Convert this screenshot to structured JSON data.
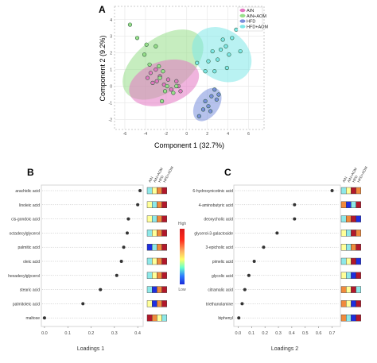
{
  "chart_data": [
    {
      "panel": "A",
      "type": "scatter",
      "xlabel": "Component 1 (32.7%)",
      "ylabel": "Component 2 (9.2%)",
      "xlim": [
        -7,
        7.5
      ],
      "ylim": [
        -2.6,
        4.8
      ],
      "xticks": [
        -6,
        -4,
        -2,
        0,
        2,
        4,
        6
      ],
      "yticks": [
        -2,
        -1,
        0,
        1,
        2,
        3,
        4
      ],
      "legend_position": "top-right",
      "series": [
        {
          "name": "AIN",
          "color": "#e377c2",
          "ellipse": {
            "cx": -2.2,
            "cy": 0.2,
            "rx": 3.5,
            "ry": 1.3,
            "angle": -18
          },
          "points": [
            [
              -3.8,
              0.5
            ],
            [
              -3.5,
              0.8
            ],
            [
              -3.0,
              1.0
            ],
            [
              -2.6,
              0.6
            ],
            [
              -2.2,
              0.1
            ],
            [
              -1.8,
              0.4
            ],
            [
              -1.5,
              -0.2
            ],
            [
              -1.0,
              0.3
            ],
            [
              -0.6,
              -0.3
            ],
            [
              -0.8,
              0.0
            ],
            [
              -2.9,
              0.3
            ],
            [
              -3.3,
              0.2
            ]
          ]
        },
        {
          "name": "AIN+AOM",
          "color": "#98df8a",
          "ellipse": {
            "cx": -2.3,
            "cy": 1.3,
            "rx": 4.5,
            "ry": 1.6,
            "angle": -37
          },
          "points": [
            [
              -5.5,
              3.7
            ],
            [
              -4.8,
              2.9
            ],
            [
              -4.1,
              1.9
            ],
            [
              -3.6,
              1.3
            ],
            [
              -3.0,
              2.4
            ],
            [
              -2.7,
              1.2
            ],
            [
              -2.6,
              0.5
            ],
            [
              -2.3,
              0.9
            ],
            [
              -2.1,
              -0.3
            ],
            [
              -1.9,
              0.0
            ],
            [
              -1.3,
              -0.4
            ],
            [
              -1.0,
              0.0
            ],
            [
              -2.4,
              -0.9
            ],
            [
              -3.9,
              2.5
            ]
          ]
        },
        {
          "name": "HFD",
          "color": "#7a8fdc",
          "ellipse": {
            "cx": 2.0,
            "cy": -1.1,
            "rx": 1.8,
            "ry": 0.7,
            "angle": -56
          },
          "points": [
            [
              1.2,
              -1.8
            ],
            [
              1.6,
              -1.4
            ],
            [
              1.8,
              -0.9
            ],
            [
              2.1,
              -1.2
            ],
            [
              2.4,
              -0.6
            ],
            [
              2.7,
              -0.2
            ],
            [
              3.1,
              -0.5
            ],
            [
              2.3,
              -1.5
            ],
            [
              2.9,
              -0.8
            ]
          ]
        },
        {
          "name": "HFD+AOM",
          "color": "#7fe8e8",
          "ellipse": {
            "cx": 3.4,
            "cy": 1.9,
            "rx": 3.1,
            "ry": 1.5,
            "angle": 36
          },
          "points": [
            [
              1.0,
              1.4
            ],
            [
              1.8,
              0.9
            ],
            [
              2.1,
              1.5
            ],
            [
              2.5,
              2.1
            ],
            [
              3.0,
              1.6
            ],
            [
              3.3,
              2.2
            ],
            [
              3.5,
              2.8
            ],
            [
              3.8,
              2.4
            ],
            [
              4.1,
              1.9
            ],
            [
              4.4,
              2.9
            ],
            [
              4.8,
              3.4
            ],
            [
              5.2,
              2.1
            ],
            [
              2.7,
              0.9
            ],
            [
              3.9,
              1.1
            ]
          ]
        }
      ]
    },
    {
      "panel": "B",
      "type": "scatter",
      "xlabel": "Loadings 1",
      "xlim": [
        -0.01,
        0.42
      ],
      "xticks": [
        0.0,
        0.1,
        0.2,
        0.3,
        0.4
      ],
      "categories": [
        "arachidic acid",
        "linoleic acid",
        "cis-gondoic acid",
        "octadecylglycerol",
        "palmitic acid",
        "oleic acid",
        "hexadecylglycerol",
        "stearic acid",
        "palmitoleic acid",
        "maltose"
      ],
      "values": [
        0.41,
        0.4,
        0.36,
        0.355,
        0.34,
        0.33,
        0.31,
        0.24,
        0.165,
        0.0
      ],
      "heatmap_columns": [
        "AIN",
        "AIN+AOM",
        "HFD",
        "HFD+AOM"
      ],
      "heatmap_levels": [
        [
          0.4,
          0.5,
          0.7,
          1.0
        ],
        [
          0.5,
          0.4,
          0.7,
          1.0
        ],
        [
          0.5,
          0.4,
          0.7,
          1.0
        ],
        [
          0.4,
          0.5,
          0.7,
          1.0
        ],
        [
          0.1,
          0.4,
          0.7,
          1.0
        ],
        [
          0.4,
          0.5,
          0.7,
          1.0
        ],
        [
          0.4,
          0.5,
          0.7,
          1.0
        ],
        [
          0.4,
          0.1,
          0.7,
          1.0
        ],
        [
          0.5,
          0.1,
          0.7,
          1.0
        ],
        [
          1.0,
          0.7,
          0.5,
          0.4
        ]
      ]
    },
    {
      "panel": "C",
      "type": "scatter",
      "xlabel": "Loadings 2",
      "xlim": [
        -0.02,
        0.75
      ],
      "xticks": [
        0.0,
        0.1,
        0.2,
        0.3,
        0.4,
        0.5,
        0.6,
        0.7
      ],
      "categories": [
        "6-hydroxynicotinic acid",
        "4-aminobutyric acid",
        "deoxycholic acid",
        "glycerol-3-galactoside",
        "3-epicholic acid",
        "pimelic acid",
        "glycolic acid",
        "citramalic acid",
        "triethanolamine",
        "biphenyl"
      ],
      "values": [
        0.7,
        0.42,
        0.42,
        0.29,
        0.19,
        0.12,
        0.08,
        0.05,
        0.03,
        0.005
      ],
      "heatmap_columns": [
        "AIN",
        "AIN+AOM",
        "HFD",
        "HFD+AOM"
      ],
      "heatmap_levels": [
        [
          0.4,
          0.5,
          1.0,
          0.7
        ],
        [
          0.7,
          0.1,
          0.4,
          1.0
        ],
        [
          0.4,
          0.7,
          1.0,
          0.1
        ],
        [
          0.5,
          0.4,
          1.0,
          0.7
        ],
        [
          0.5,
          0.4,
          0.7,
          1.0
        ],
        [
          0.4,
          0.5,
          1.0,
          0.1
        ],
        [
          0.5,
          0.4,
          0.1,
          1.0
        ],
        [
          0.7,
          0.5,
          1.0,
          0.4
        ],
        [
          0.7,
          0.5,
          0.1,
          1.0
        ],
        [
          0.7,
          0.4,
          0.1,
          1.0
        ]
      ]
    }
  ],
  "panel_labels": {
    "a": "A",
    "b": "B",
    "c": "C"
  },
  "colorbar": {
    "high": "High",
    "low": "Low"
  }
}
